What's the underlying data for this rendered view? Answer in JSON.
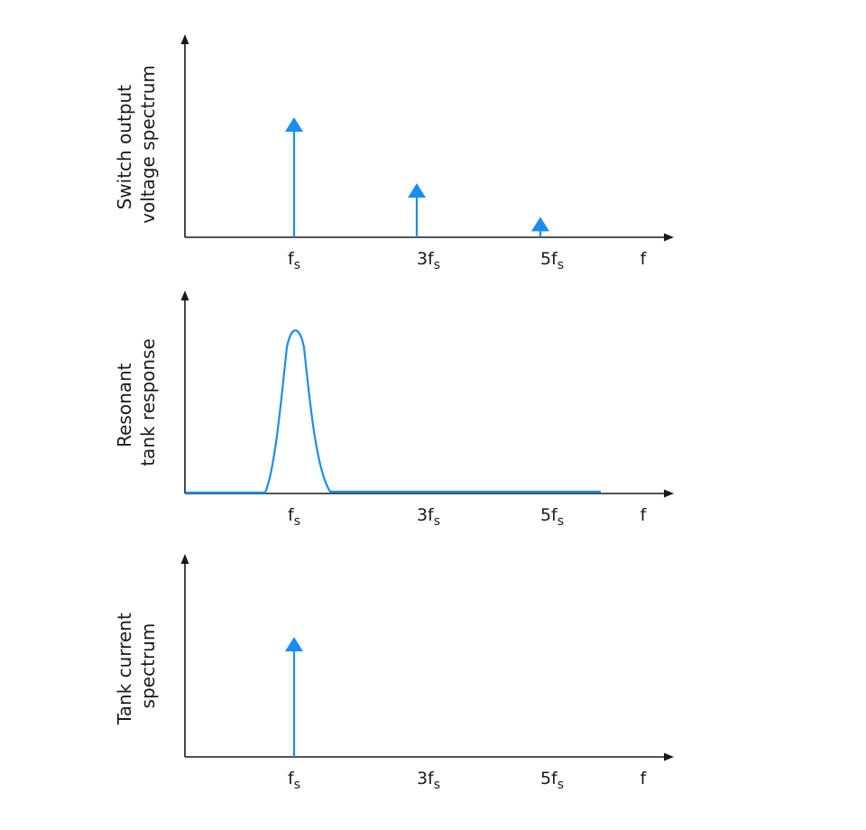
{
  "colors": {
    "accent": "#1a8ef0",
    "axis": "#1a1a1a"
  },
  "panels": [
    {
      "id": "switch-output",
      "ylabel_lines": [
        "Switch output",
        "voltage spectrum"
      ],
      "xlabel": "f",
      "ticks": [
        {
          "main": "f",
          "sub": "s",
          "harmonic": 1
        },
        {
          "main": "3f",
          "sub": "s",
          "harmonic": 3
        },
        {
          "main": "5f",
          "sub": "s",
          "harmonic": 5
        }
      ],
      "lines": [
        {
          "harmonic": 1,
          "amplitude": 1.0
        },
        {
          "harmonic": 3,
          "amplitude": 0.45
        },
        {
          "harmonic": 5,
          "amplitude": 0.17
        }
      ]
    },
    {
      "id": "resonant-tank",
      "ylabel_lines": [
        "Resonant",
        "tank response"
      ],
      "xlabel": "f",
      "ticks": [
        {
          "main": "f",
          "sub": "s",
          "harmonic": 1
        },
        {
          "main": "3f",
          "sub": "s",
          "harmonic": 3
        },
        {
          "main": "5f",
          "sub": "s",
          "harmonic": 5
        }
      ],
      "peak": {
        "harmonic": 1,
        "amplitude": 1.0
      }
    },
    {
      "id": "tank-current",
      "ylabel_lines": [
        "Tank current",
        "spectrum"
      ],
      "xlabel": "f",
      "ticks": [
        {
          "main": "f",
          "sub": "s",
          "harmonic": 1
        },
        {
          "main": "3f",
          "sub": "s",
          "harmonic": 3
        },
        {
          "main": "5f",
          "sub": "s",
          "harmonic": 5
        }
      ],
      "lines": [
        {
          "harmonic": 1,
          "amplitude": 1.0
        }
      ]
    }
  ]
}
